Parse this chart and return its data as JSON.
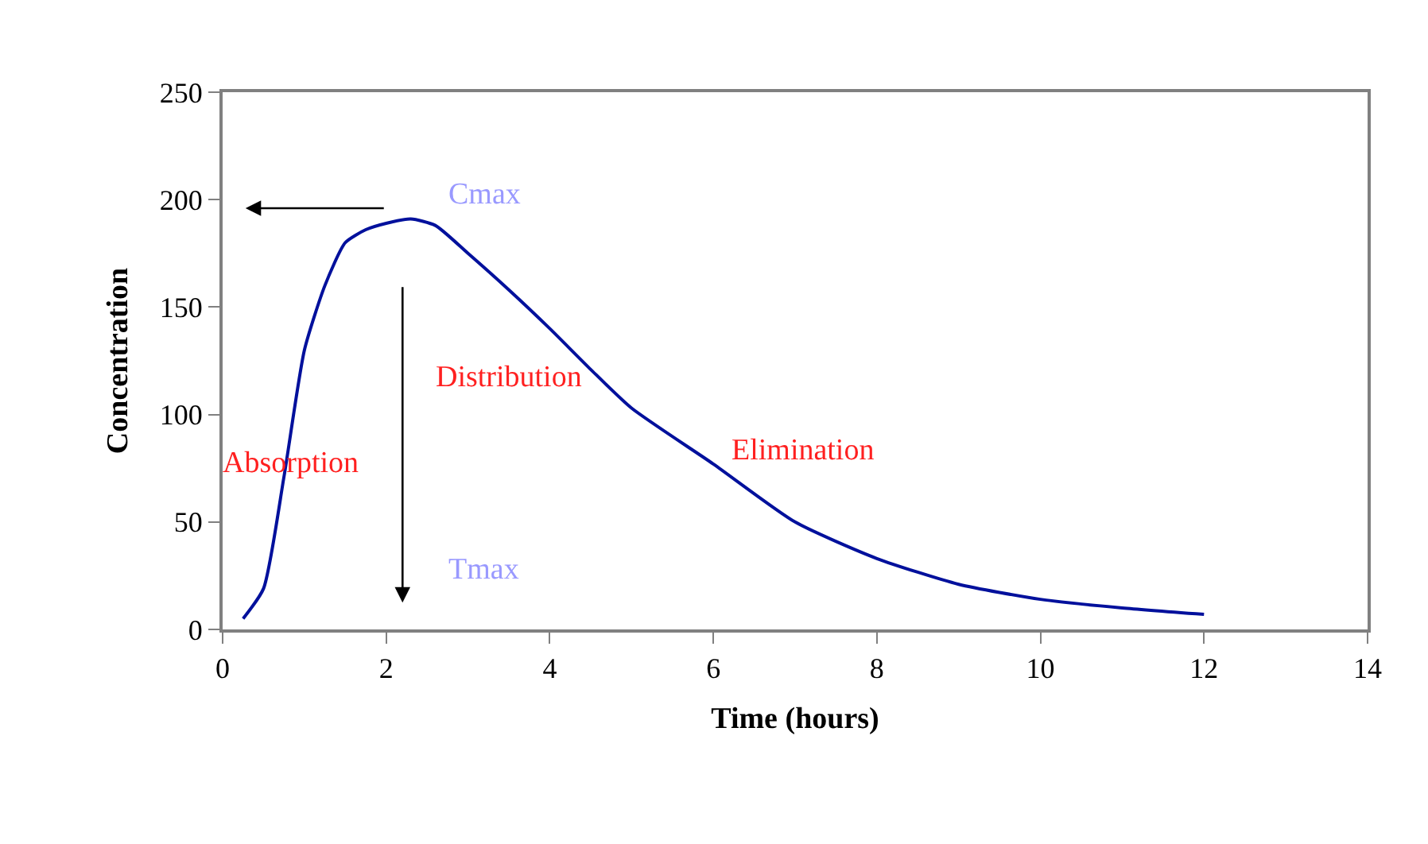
{
  "chart_data": {
    "type": "line",
    "xlabel": "Time (hours)",
    "ylabel": "Concentration",
    "x": [
      0.25,
      0.5,
      0.75,
      1.0,
      1.25,
      1.5,
      1.75,
      2.0,
      2.3,
      2.6,
      3.0,
      3.5,
      4.0,
      4.5,
      5.0,
      6.0,
      7.0,
      8.0,
      9.0,
      10.0,
      11.0,
      12.0
    ],
    "series": [
      {
        "color": "#00109c",
        "values": [
          5,
          19,
          71,
          130,
          160,
          180,
          186,
          189,
          191,
          188,
          175,
          158,
          140,
          121,
          103,
          77,
          50,
          33,
          21,
          14,
          10,
          7
        ]
      }
    ],
    "xlim": [
      0,
      14
    ],
    "xticks": [
      0,
      2,
      4,
      6,
      8,
      10,
      12,
      14
    ],
    "ylim": [
      0,
      250
    ],
    "yticks": [
      0,
      50,
      100,
      150,
      200,
      250
    ],
    "legend": false,
    "marker": "none",
    "line_style": "solid",
    "annotations": [
      "Cmax",
      "Tmax",
      "Absorption",
      "Distribution",
      "Elimination"
    ]
  }
}
